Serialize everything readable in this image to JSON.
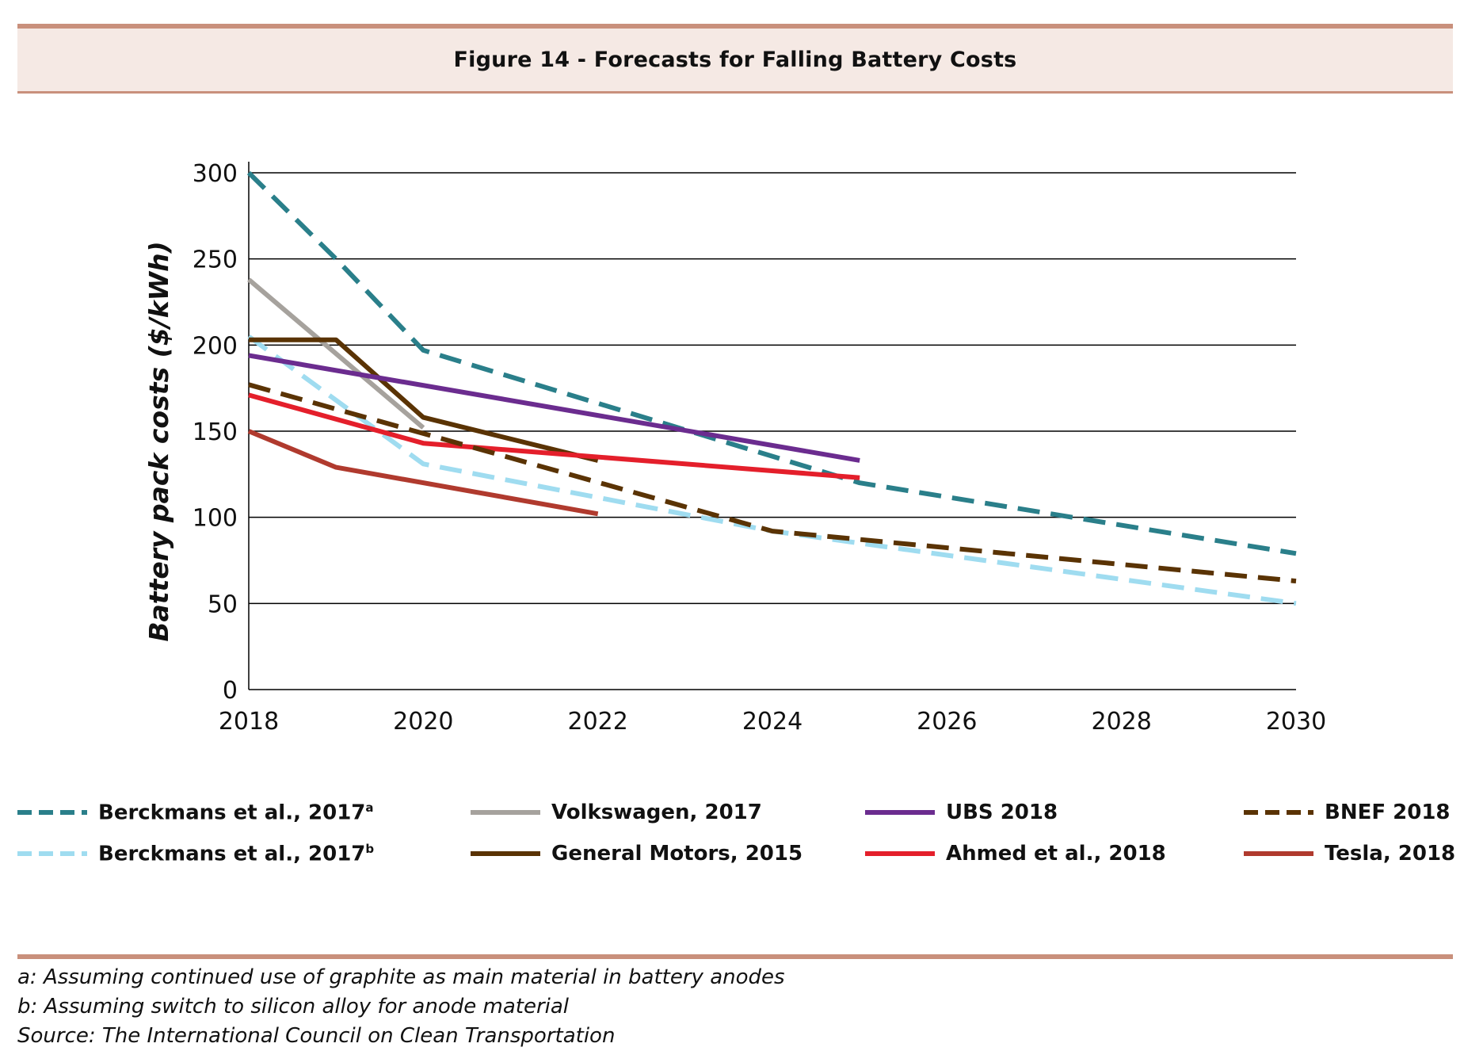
{
  "title": "Figure 14 - Forecasts for Falling Battery Costs",
  "chart_data": {
    "type": "line",
    "title": "Figure 14 - Forecasts for Falling Battery Costs",
    "xlabel": "",
    "ylabel": "Battery pack costs ($/kWh)",
    "xlim": [
      2018,
      2030
    ],
    "ylim": [
      0,
      300
    ],
    "x_ticks": [
      "2018",
      "2020",
      "2022",
      "2024",
      "2026",
      "2028",
      "2030"
    ],
    "y_ticks": [
      "0",
      "50",
      "100",
      "150",
      "200",
      "250",
      "300"
    ],
    "grid": "horizontal",
    "legend_position": "bottom",
    "series": [
      {
        "name": "Berckmans et al., 2017",
        "name_sup": "a",
        "color": "#2a7f8a",
        "dashed": true,
        "x": [
          2018,
          2019,
          2020,
          2025,
          2030
        ],
        "y": [
          300,
          250,
          197,
          120,
          79
        ]
      },
      {
        "name": "Berckmans et al., 2017",
        "name_sup": "b",
        "color": "#9fdcf0",
        "dashed": true,
        "x": [
          2018,
          2020,
          2024,
          2030
        ],
        "y": [
          205,
          131,
          92,
          50
        ]
      },
      {
        "name": "Volkswagen, 2017",
        "color": "#a6a29d",
        "dashed": false,
        "x": [
          2018,
          2020
        ],
        "y": [
          238,
          152
        ]
      },
      {
        "name": "General Motors, 2015",
        "color": "#5a3304",
        "dashed": false,
        "x": [
          2018,
          2019,
          2020,
          2022
        ],
        "y": [
          203,
          203,
          158,
          133
        ]
      },
      {
        "name": "UBS 2018",
        "color": "#6b2c8f",
        "dashed": false,
        "x": [
          2018,
          2025
        ],
        "y": [
          194,
          133
        ]
      },
      {
        "name": "Ahmed et al., 2018",
        "color": "#e41f2b",
        "dashed": false,
        "x": [
          2018,
          2020,
          2025
        ],
        "y": [
          171,
          143,
          123
        ]
      },
      {
        "name": "BNEF 2018",
        "color": "#5a3304",
        "dashed": true,
        "x": [
          2018,
          2024,
          2030
        ],
        "y": [
          177,
          92,
          63
        ]
      },
      {
        "name": "Tesla, 2018",
        "color": "#b03a2e",
        "dashed": false,
        "x": [
          2018,
          2019,
          2022
        ],
        "y": [
          150,
          129,
          102
        ]
      }
    ]
  },
  "notes": [
    "a: Assuming continued use of graphite as main material in battery anodes",
    "b: Assuming switch to silicon alloy for anode material",
    "Source: The International Council on Clean Transportation"
  ]
}
